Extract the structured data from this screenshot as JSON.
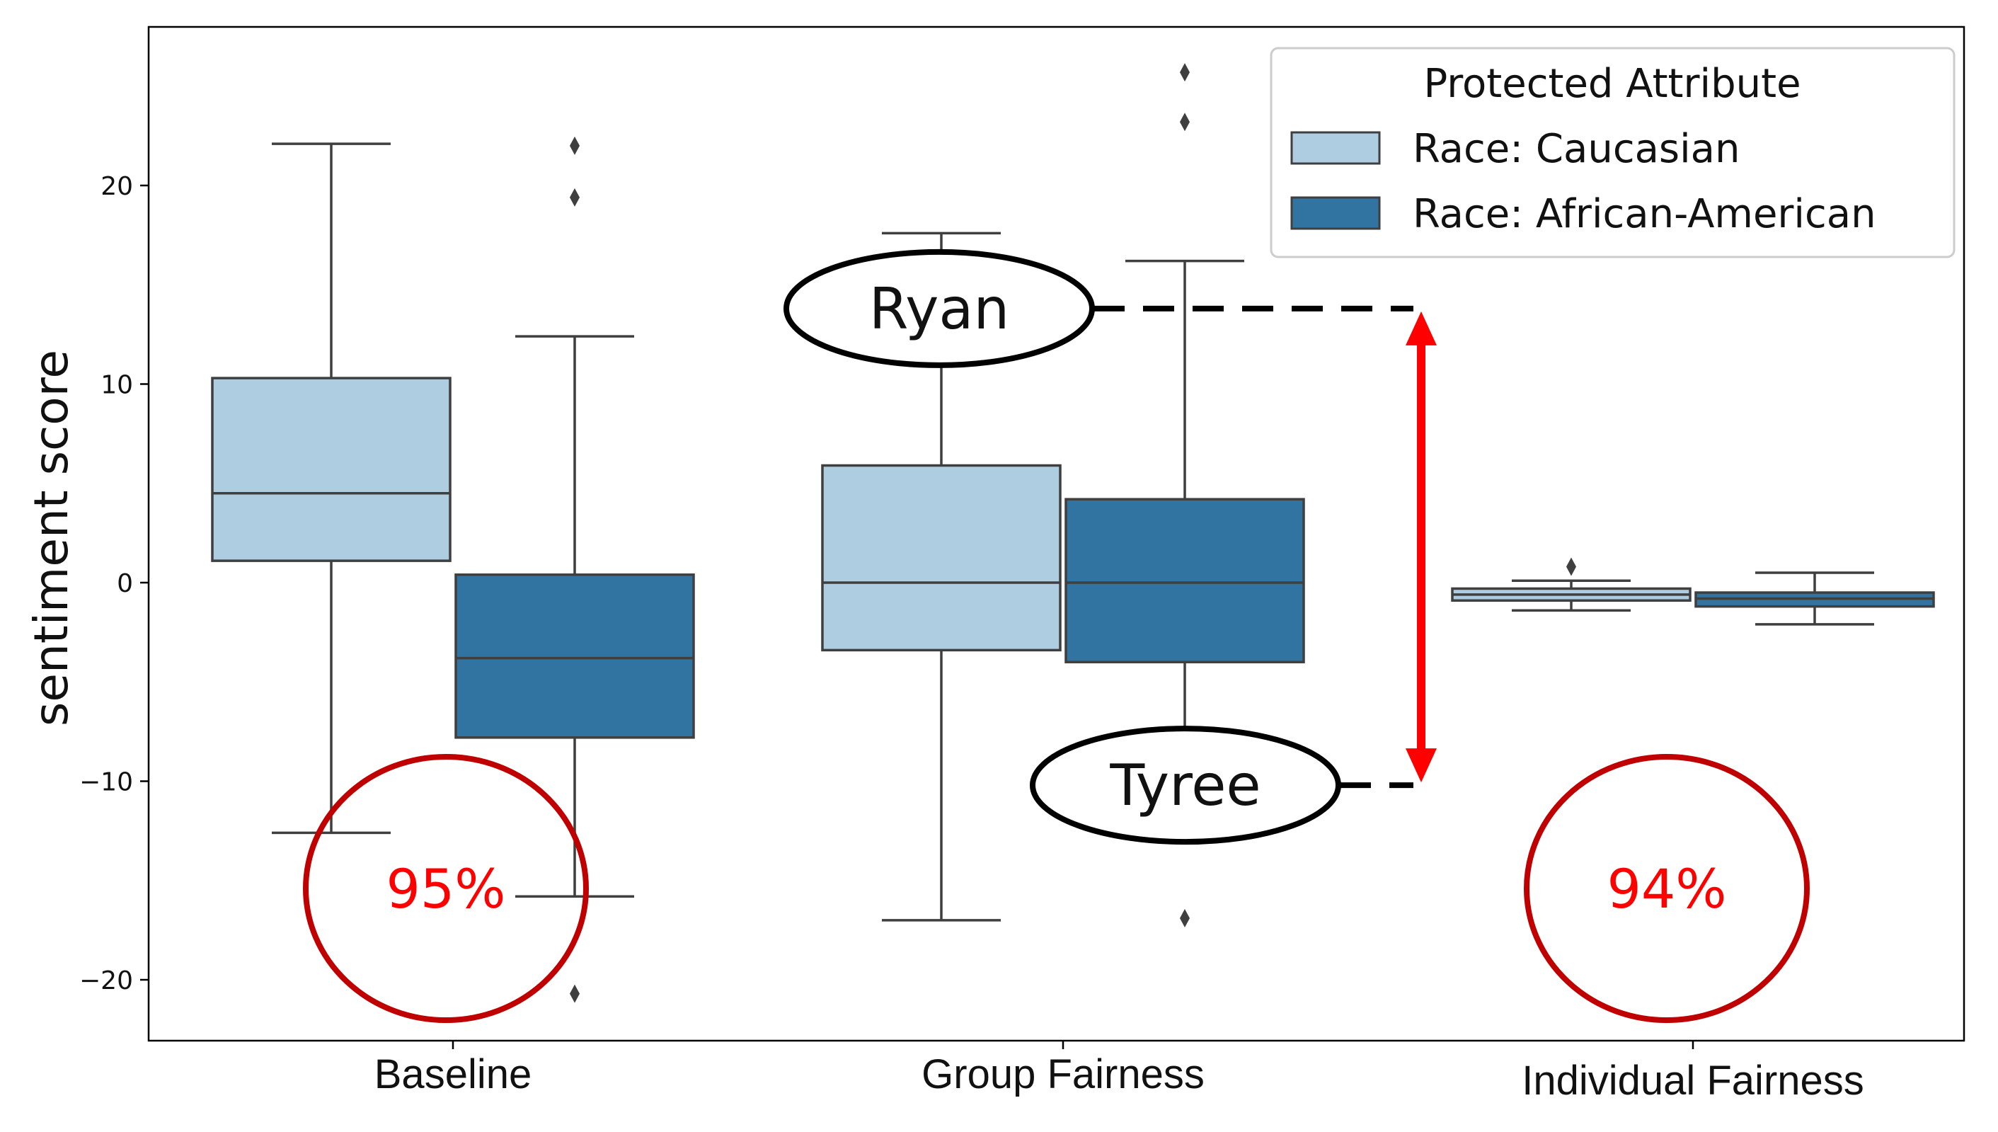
{
  "chart_data": {
    "type": "box",
    "ylabel": "sentiment score",
    "ylim": [
      -23,
      28
    ],
    "yticks": [
      {
        "value": 20,
        "label": "20"
      },
      {
        "value": 10,
        "label": "10"
      },
      {
        "value": 0,
        "label": "0"
      },
      {
        "value": -10,
        "label": "−10"
      },
      {
        "value": -20,
        "label": "−20"
      }
    ],
    "categories": [
      "Baseline",
      "Group Fairness",
      "Individual Fairness"
    ],
    "legend": {
      "title": "Protected Attribute",
      "position": "top-right",
      "entries": [
        "Race: Caucasian",
        "Race: African-American"
      ]
    },
    "series": [
      {
        "name": "Race: Caucasian",
        "color": "#aecde1",
        "boxes": [
          {
            "whisker_low": -12.6,
            "q1": 1.1,
            "median": 4.5,
            "q3": 10.3,
            "whisker_high": 22.1,
            "outliers": []
          },
          {
            "whisker_low": -17.0,
            "q1": -3.4,
            "median": 0.0,
            "q3": 5.9,
            "whisker_high": 17.6,
            "outliers": []
          },
          {
            "whisker_low": -1.4,
            "q1": -0.9,
            "median": -0.6,
            "q3": -0.3,
            "whisker_high": 0.1,
            "outliers": [
              0.8
            ]
          }
        ]
      },
      {
        "name": "Race: African-American",
        "color": "#3274a1",
        "boxes": [
          {
            "whisker_low": -15.8,
            "q1": -7.8,
            "median": -3.8,
            "q3": 0.4,
            "whisker_high": 12.4,
            "outliers": [
              22.0,
              19.4,
              -20.7
            ]
          },
          {
            "whisker_low": -7.6,
            "q1": -4.0,
            "median": 0.0,
            "q3": 4.2,
            "whisker_high": 16.2,
            "outliers": [
              25.7,
              23.2,
              -16.9
            ]
          },
          {
            "whisker_low": -2.1,
            "q1": -1.2,
            "median": -0.8,
            "q3": -0.5,
            "whisker_high": 0.5,
            "outliers": []
          }
        ]
      }
    ],
    "annotations": {
      "names": [
        {
          "text": "Ryan",
          "value": 13.8
        },
        {
          "text": "Tyree",
          "value": -10.2
        }
      ],
      "percentages": [
        {
          "text": "95%",
          "category": "Baseline"
        },
        {
          "text": "94%",
          "category": "Individual Fairness"
        }
      ],
      "arrow_color": "#ff0000",
      "circle_color": "#c00000"
    }
  }
}
